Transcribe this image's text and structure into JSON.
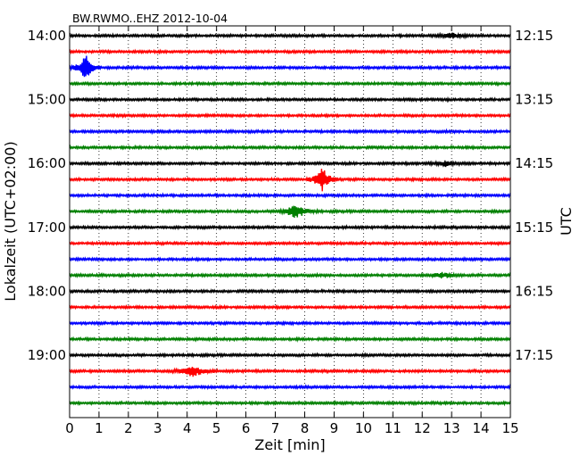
{
  "chart_data": {
    "type": "line",
    "title": "BW.RWMO..EHZ 2012-10-04",
    "xlabel": "Zeit  [min]",
    "ylabel_left": "Lokalzeit (UTC+02:00)",
    "ylabel_right": "UTC",
    "xlim": [
      0,
      15
    ],
    "x_ticks": [
      "0",
      "1",
      "2",
      "3",
      "4",
      "5",
      "6",
      "7",
      "8",
      "9",
      "10",
      "11",
      "12",
      "13",
      "14",
      "15"
    ],
    "trace_interval_min": 15,
    "trace_count": 24,
    "left_tick_labels": [
      "14:00",
      "15:00",
      "16:00",
      "17:00",
      "18:00",
      "19:00"
    ],
    "right_tick_labels": [
      "12:15",
      "13:15",
      "14:15",
      "15:15",
      "16:15",
      "17:15"
    ],
    "trace_colors": [
      "#000000",
      "#ff0000",
      "#0000ff",
      "#008000"
    ],
    "grid": "vertical dotted",
    "events": [
      {
        "trace_start": "14:30",
        "minute": 0.55,
        "color": "#0000ff",
        "amplitude": "high"
      },
      {
        "trace_start": "16:15",
        "minute": 8.6,
        "color": "#ff0000",
        "amplitude": "high"
      },
      {
        "trace_start": "16:45",
        "minute": 7.7,
        "color": "#008000",
        "amplitude": "medium"
      },
      {
        "trace_start": "17:45",
        "minute": 12.7,
        "color": "#008000",
        "amplitude": "low"
      },
      {
        "trace_start": "19:15",
        "minute": 4.2,
        "color": "#ff0000",
        "amplitude": "medium"
      },
      {
        "trace_start": "16:00",
        "minute": 12.8,
        "color": "#000000",
        "amplitude": "low"
      },
      {
        "trace_start": "14:00",
        "minute": 13.0,
        "color": "#000000",
        "amplitude": "low"
      }
    ]
  }
}
